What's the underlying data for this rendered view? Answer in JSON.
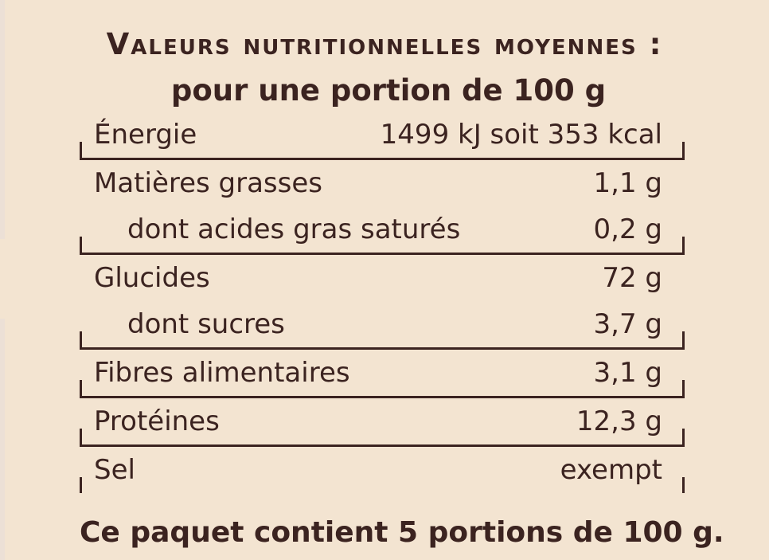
{
  "title": "Valeurs nutritionnelles moyennes :",
  "subtitle": "pour une portion de 100 g",
  "rows": {
    "energie": {
      "label": "Énergie",
      "value": "1499 kJ soit 353 kcal"
    },
    "matieres_grasses": {
      "label": "Matières grasses",
      "value": "1,1 g"
    },
    "acides_gras_satures": {
      "label": "dont acides gras saturés",
      "value": "0,2 g"
    },
    "glucides": {
      "label": "Glucides",
      "value": "72 g"
    },
    "sucres": {
      "label": "dont sucres",
      "value": "3,7 g"
    },
    "fibres": {
      "label": "Fibres alimentaires",
      "value": "3,1 g"
    },
    "proteines": {
      "label": "Protéines",
      "value": "12,3 g"
    },
    "sel": {
      "label": "Sel",
      "value": "exempt"
    }
  },
  "footer": "Ce paquet contient 5 portions de 100 g.",
  "colors": {
    "background": "#f3e4d1",
    "text": "#3b2320"
  }
}
